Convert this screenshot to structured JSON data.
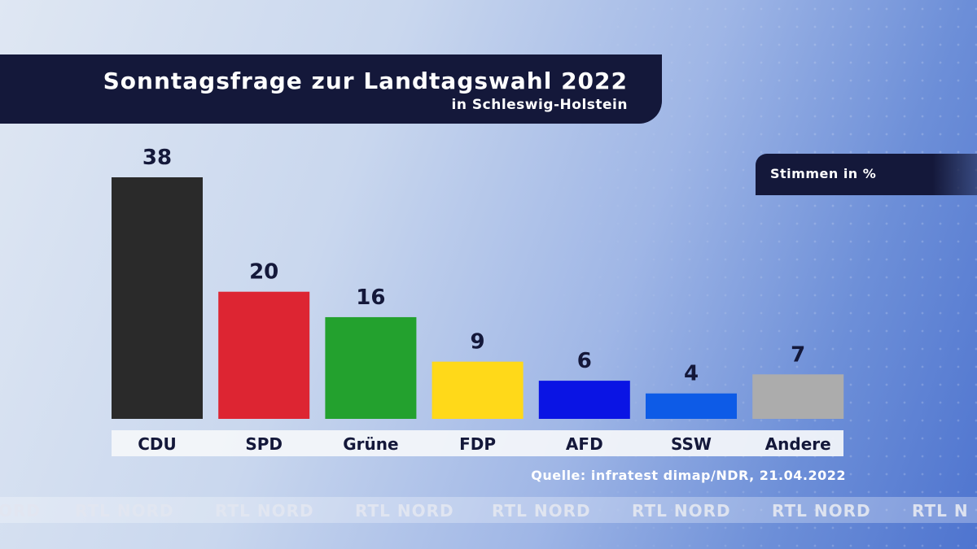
{
  "header": {
    "title": "Sonntagsfrage zur Landtagswahl 2022",
    "subtitle": "in Schleswig-Holstein"
  },
  "unit_label": "Stimmen in %",
  "source": "Quelle: infratest dimap/NDR, 21.04.2022",
  "ticker": {
    "items": [
      "ORD",
      "RTL NORD",
      "RTL NORD",
      "RTL NORD",
      "RTL NORD",
      "RTL NORD",
      "RTL NORD",
      "RTL N"
    ]
  },
  "chart_data": {
    "type": "bar",
    "title": "Sonntagsfrage zur Landtagswahl 2022",
    "subtitle": "in Schleswig-Holstein",
    "ylabel": "Stimmen in %",
    "categories": [
      "CDU",
      "SPD",
      "Grüne",
      "FDP",
      "AFD",
      "SSW",
      "Andere"
    ],
    "values": [
      38,
      20,
      16,
      9,
      6,
      4,
      7
    ],
    "colors": [
      "#2a2a2a",
      "#dd2532",
      "#23a12e",
      "#ffd919",
      "#0a14e4",
      "#0d5be7",
      "#acacac"
    ],
    "ylim": [
      0,
      38
    ],
    "grid": false,
    "legend": "none"
  }
}
